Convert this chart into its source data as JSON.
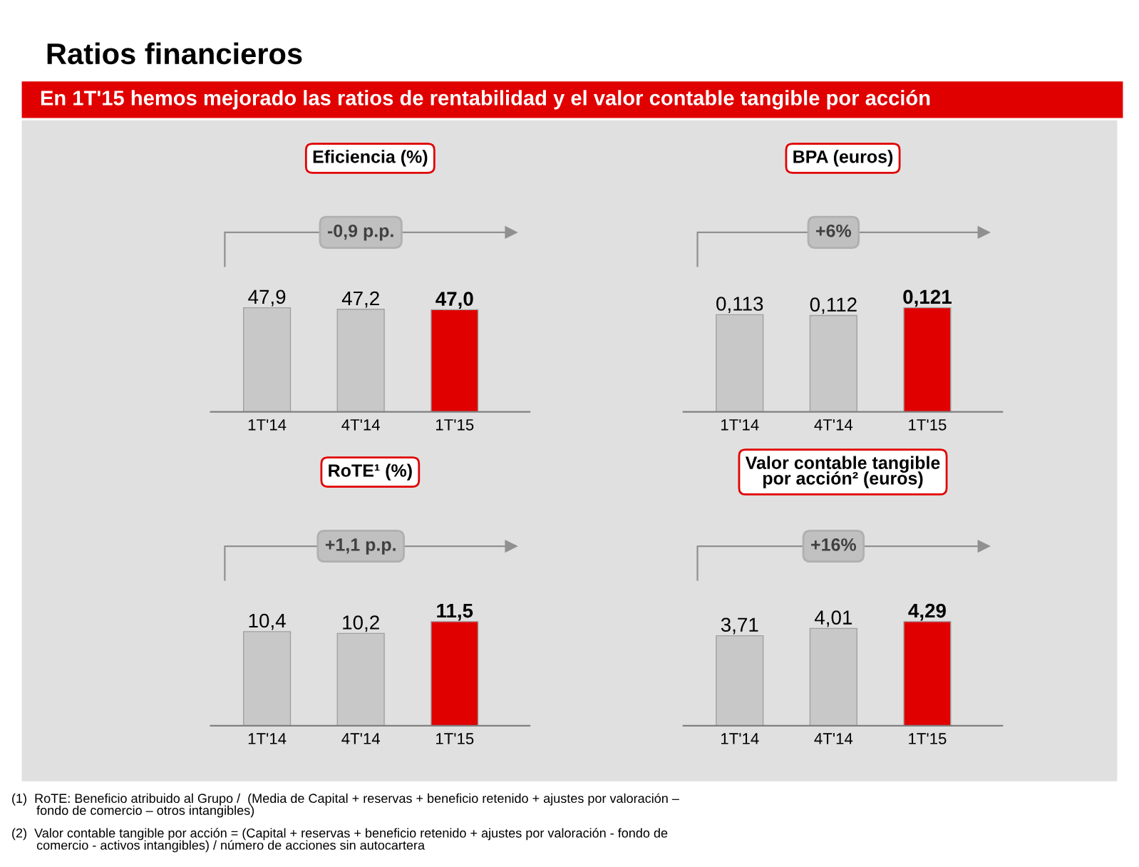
{
  "chart_data": [
    {
      "type": "other",
      "title": "Ratios financieros",
      "subtitle": "En 1T'15 hemos mejorado las ratios de rentabilidad y el valor contable tangible por acción",
      "annotations": [
        "(1)  RoTE: Beneficio atribuido al Grupo /  (Media de Capital + reservas + beneficio retenido + ajustes por valoración –\n       fondo de comercio – otros intangibles)",
        "(2)  Valor contable tangible por acción = (Capital + reservas + beneficio retenido + ajustes por valoración - fondo de\n       comercio - activos intangibles) / número de acciones sin autocartera"
      ]
    },
    {
      "type": "bar",
      "title": "Eficiencia (%)",
      "categories": [
        "1T'14",
        "4T'14",
        "1T'15"
      ],
      "values": [
        47.9,
        47.2,
        47.0
      ],
      "value_labels": [
        "47,9",
        "47,2",
        "47,0"
      ],
      "colors": [
        "#c8c8c8",
        "#c8c8c8",
        "#e00000"
      ],
      "annotations": [
        "-0,9 p.p."
      ]
    },
    {
      "type": "bar",
      "title": "BPA (euros)",
      "categories": [
        "1T'14",
        "4T'14",
        "1T'15"
      ],
      "values": [
        0.113,
        0.112,
        0.121
      ],
      "value_labels": [
        "0,113",
        "0,112",
        "0,121"
      ],
      "colors": [
        "#c8c8c8",
        "#c8c8c8",
        "#e00000"
      ],
      "annotations": [
        "+6%"
      ]
    },
    {
      "type": "bar",
      "title": "RoTE¹ (%)",
      "categories": [
        "1T'14",
        "4T'14",
        "1T'15"
      ],
      "values": [
        10.4,
        10.2,
        11.5
      ],
      "value_labels": [
        "10,4",
        "10,2",
        "11,5"
      ],
      "colors": [
        "#c8c8c8",
        "#c8c8c8",
        "#e00000"
      ],
      "annotations": [
        "+1,1 p.p."
      ]
    },
    {
      "type": "bar",
      "title": "Valor contable tangible\npor acción² (euros)",
      "categories": [
        "1T'14",
        "4T'14",
        "1T'15"
      ],
      "values": [
        3.71,
        4.01,
        4.29
      ],
      "value_labels": [
        "3,71",
        "4,01",
        "4,29"
      ],
      "colors": [
        "#c8c8c8",
        "#c8c8c8",
        "#e00000"
      ],
      "annotations": [
        "+16%"
      ]
    }
  ]
}
